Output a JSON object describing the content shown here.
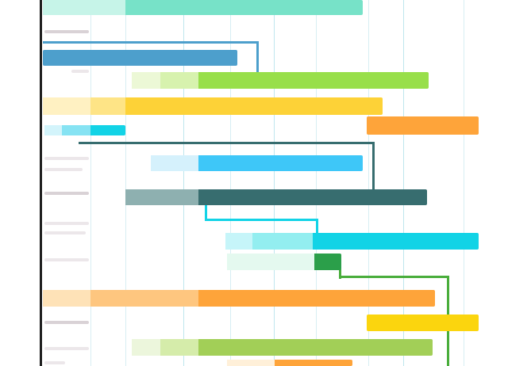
{
  "diagram": {
    "type": "gantt-chart",
    "labels_visible": false,
    "colors": {
      "background": "#ffffff",
      "axis": "#1f1f1f",
      "grid": "#d7eef3",
      "teal": "#77e2c8",
      "blue": "#4d9fcc",
      "green": "#98df4a",
      "yellow": "#fdd237",
      "orange": "#fea43a",
      "cyan": "#12d3e6",
      "sky": "#3ec7f8",
      "slate": "#376d6f",
      "dark-green": "#2b9f4a",
      "olive": "#a2cf57",
      "gold": "#fbd50e"
    },
    "tasks": [
      {
        "id": "task-1",
        "color": "teal",
        "has_faded_lead": true
      },
      {
        "id": "task-2",
        "color": "blue",
        "has_faded_lead": false
      },
      {
        "id": "task-3",
        "color": "green",
        "has_faded_lead": true
      },
      {
        "id": "task-4",
        "color": "yellow",
        "has_faded_lead": true
      },
      {
        "id": "task-5",
        "color": "orange",
        "has_faded_lead": false
      },
      {
        "id": "task-6",
        "color": "cyan",
        "has_faded_lead": true
      },
      {
        "id": "task-7",
        "color": "sky",
        "has_faded_lead": true
      },
      {
        "id": "task-8",
        "color": "slate",
        "has_faded_lead": true
      },
      {
        "id": "task-9",
        "color": "cyan",
        "has_faded_lead": true
      },
      {
        "id": "task-10",
        "color": "dark-green",
        "has_faded_lead": true
      },
      {
        "id": "task-11",
        "color": "orange",
        "has_faded_lead": true
      },
      {
        "id": "task-12",
        "color": "gold",
        "has_faded_lead": false
      },
      {
        "id": "task-13",
        "color": "olive",
        "has_faded_lead": true
      },
      {
        "id": "task-14",
        "color": "orange",
        "has_faded_lead": true
      }
    ],
    "dependencies": [
      {
        "from": "task-2",
        "to": "task-3",
        "color": "blue"
      },
      {
        "from": "task-6",
        "to": "task-8",
        "color": "slate"
      },
      {
        "from": "task-8",
        "to": "task-9",
        "color": "cyan"
      },
      {
        "from": "task-10",
        "to": "task-14",
        "color": "dark-green"
      }
    ]
  }
}
